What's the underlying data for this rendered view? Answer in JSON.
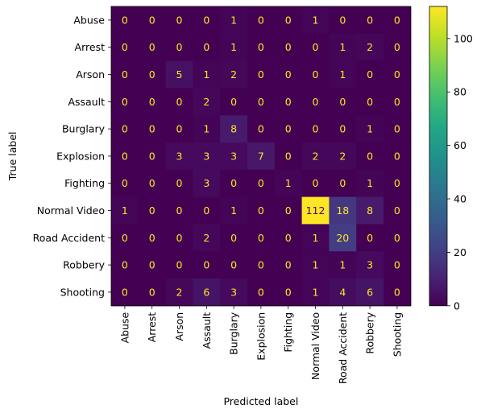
{
  "chart_data": {
    "type": "heatmap",
    "xlabel": "Predicted label",
    "ylabel": "True label",
    "categories": [
      "Abuse",
      "Arrest",
      "Arson",
      "Assault",
      "Burglary",
      "Explosion",
      "Fighting",
      "Normal Video",
      "Road Accident",
      "Robbery",
      "Shooting"
    ],
    "matrix": [
      [
        0,
        0,
        0,
        0,
        1,
        0,
        0,
        1,
        0,
        0,
        0
      ],
      [
        0,
        0,
        0,
        0,
        1,
        0,
        0,
        0,
        1,
        2,
        0
      ],
      [
        0,
        0,
        5,
        1,
        2,
        0,
        0,
        0,
        1,
        0,
        0
      ],
      [
        0,
        0,
        0,
        2,
        0,
        0,
        0,
        0,
        0,
        0,
        0
      ],
      [
        0,
        0,
        0,
        1,
        8,
        0,
        0,
        0,
        0,
        1,
        0
      ],
      [
        0,
        0,
        3,
        3,
        3,
        7,
        0,
        2,
        2,
        0,
        0
      ],
      [
        0,
        0,
        0,
        3,
        0,
        0,
        1,
        0,
        0,
        1,
        0
      ],
      [
        1,
        0,
        0,
        0,
        1,
        0,
        0,
        112,
        18,
        8,
        0
      ],
      [
        0,
        0,
        0,
        2,
        0,
        0,
        0,
        1,
        20,
        0,
        0
      ],
      [
        0,
        0,
        0,
        0,
        0,
        0,
        0,
        1,
        1,
        3,
        0
      ],
      [
        0,
        0,
        2,
        6,
        3,
        0,
        0,
        1,
        4,
        6,
        0
      ]
    ],
    "colormap": "viridis",
    "vmin": 0,
    "vmax": 112,
    "colorbar_ticks": [
      0,
      20,
      40,
      60,
      80,
      100
    ],
    "text_colors": {
      "dark_cell": "#fde725",
      "light_cell": "#440154"
    },
    "grid": false
  }
}
